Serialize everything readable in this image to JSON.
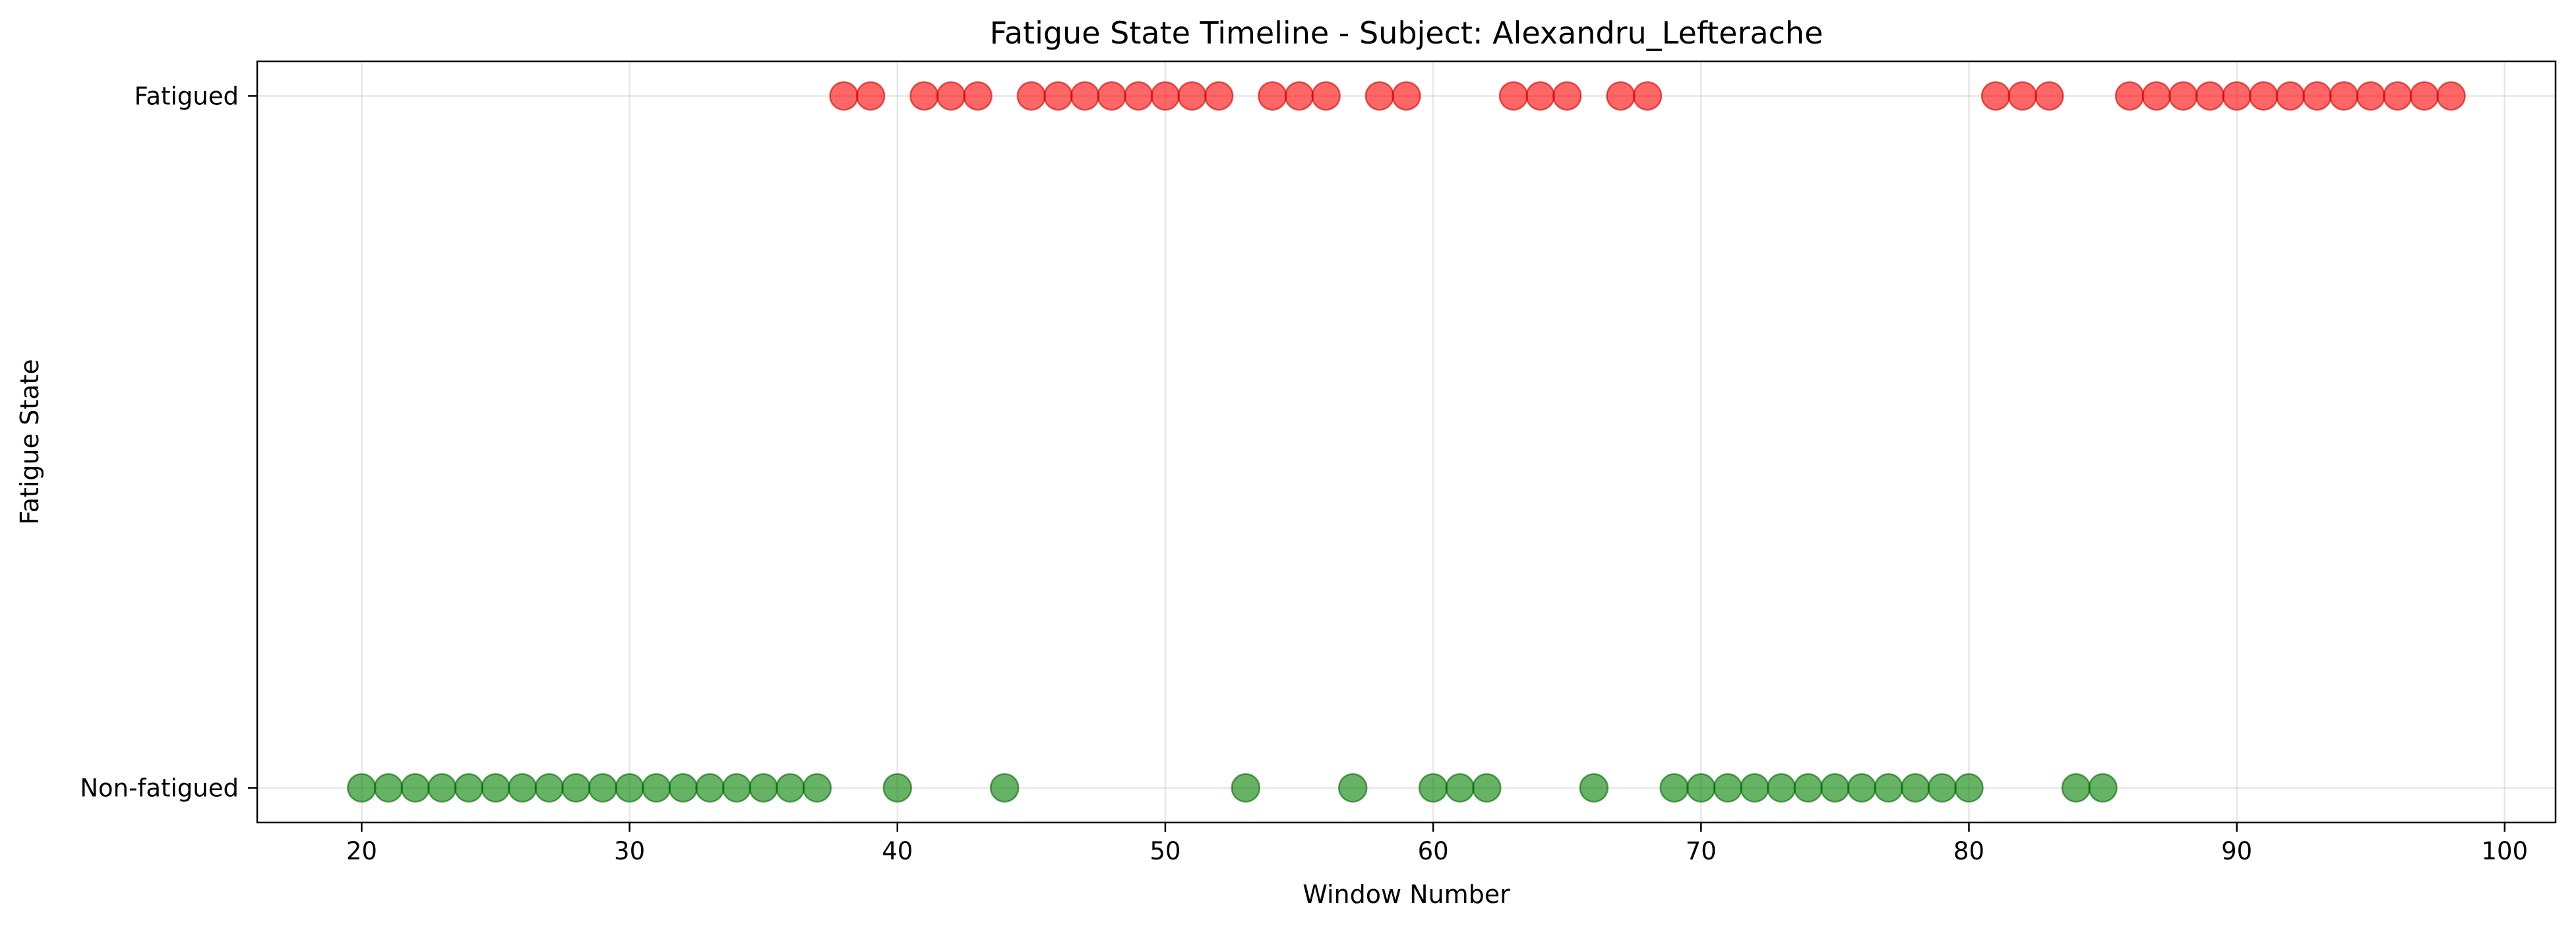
{
  "chart_data": {
    "type": "scatter",
    "title": "Fatigue State Timeline - Subject: Alexandru_Lefterache",
    "xlabel": "Window Number",
    "ylabel": "Fatigue State",
    "xlim": [
      16.1,
      101.9
    ],
    "ylim": [
      -0.05,
      1.05
    ],
    "x_ticks": [
      20,
      30,
      40,
      50,
      60,
      70,
      80,
      90,
      100
    ],
    "y_ticks": [
      0,
      1
    ],
    "y_tick_labels": [
      "Non-fatigued",
      "Fatigued"
    ],
    "grid": true,
    "series": [
      {
        "name": "Fatigued",
        "y": 1,
        "color": "#ff0000",
        "edge_color": "#cc0000",
        "opacity": 0.6,
        "x": [
          38,
          39,
          41,
          42,
          43,
          45,
          46,
          47,
          48,
          49,
          50,
          51,
          52,
          54,
          55,
          56,
          58,
          59,
          63,
          64,
          65,
          67,
          68,
          81,
          82,
          83,
          86,
          87,
          88,
          89,
          90,
          91,
          92,
          93,
          94,
          95,
          96,
          97,
          98
        ]
      },
      {
        "name": "Non-fatigued",
        "y": 0,
        "color": "#008000",
        "edge_color": "#006400",
        "opacity": 0.6,
        "x": [
          20,
          21,
          22,
          23,
          24,
          25,
          26,
          27,
          28,
          29,
          30,
          31,
          32,
          33,
          34,
          35,
          36,
          37,
          40,
          44,
          53,
          57,
          60,
          61,
          62,
          66,
          69,
          70,
          71,
          72,
          73,
          74,
          75,
          76,
          77,
          78,
          79,
          80,
          84,
          85
        ]
      }
    ]
  }
}
